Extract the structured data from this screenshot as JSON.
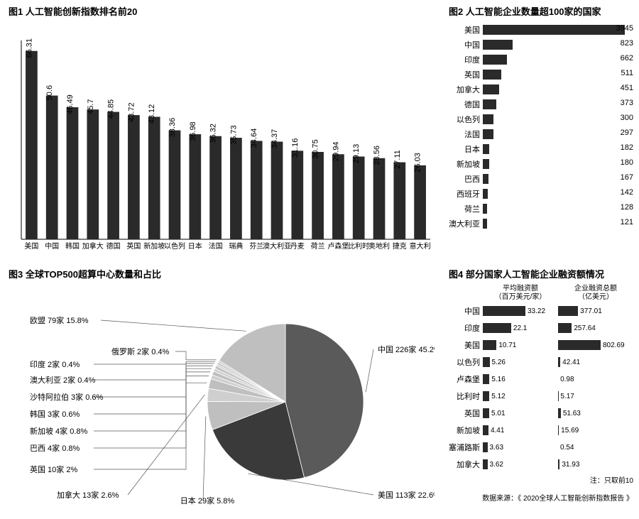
{
  "colors": {
    "bar": "#2a2a2a",
    "pie_china": "#5a5a5a",
    "pie_us": "#3a3a3a",
    "pie_light": "#bfbfbf",
    "bg": "#ffffff"
  },
  "chart1": {
    "type": "bar",
    "title": "图1  人工智能创新指数排名前20",
    "ylim": [
      0,
      70
    ],
    "categories": [
      "美国",
      "中国",
      "韩国",
      "加拿大",
      "德国",
      "英国",
      "新加坡",
      "以色列",
      "日本",
      "法国",
      "瑞典",
      "芬兰",
      "澳大利亚",
      "丹麦",
      "荷兰",
      "卢森堡",
      "比利时",
      "奥地利",
      "捷克",
      "意大利"
    ],
    "values": [
      66.31,
      50.6,
      46.49,
      45.7,
      44.85,
      43.72,
      43.12,
      38.36,
      36.98,
      36.32,
      35.73,
      34.64,
      34.37,
      31.16,
      30.75,
      29.94,
      29.13,
      28.56,
      27.11,
      26.03
    ],
    "value_fontsize": 11,
    "bar_color": "#2a2a2a"
  },
  "chart2": {
    "type": "hbar",
    "title": "图2 人工智能企业数量超100家的国家",
    "categories": [
      "美国",
      "中国",
      "印度",
      "英国",
      "加拿大",
      "德国",
      "以色列",
      "法国",
      "日本",
      "新加坡",
      "巴西",
      "西班牙",
      "荷兰",
      "澳大利亚"
    ],
    "values": [
      3945,
      823,
      662,
      511,
      451,
      373,
      300,
      297,
      182,
      180,
      167,
      142,
      128,
      121
    ],
    "xlim": 3945,
    "bar_color": "#2a2a2a"
  },
  "chart3": {
    "type": "pie",
    "title": "图3 全球TOP500超算中心数量和占比",
    "slices": [
      {
        "label": "中国",
        "count": 226,
        "pct": "45.2%",
        "color": "#5a5a5a"
      },
      {
        "label": "美国",
        "count": 113,
        "pct": "22.6%",
        "color": "#3a3a3a"
      },
      {
        "label": "日本",
        "count": 29,
        "pct": "5.8%",
        "color": "#bfbfbf"
      },
      {
        "label": "加拿大",
        "count": 13,
        "pct": "2.6%",
        "color": "#cfcfcf"
      },
      {
        "label": "英国",
        "count": 10,
        "pct": "2%",
        "color": "#bfbfbf"
      },
      {
        "label": "巴西",
        "count": 4,
        "pct": "0.8%",
        "color": "#cfcfcf"
      },
      {
        "label": "新加坡",
        "count": 4,
        "pct": "0.8%",
        "color": "#bfbfbf"
      },
      {
        "label": "韩国",
        "count": 3,
        "pct": "0.6%",
        "color": "#cfcfcf"
      },
      {
        "label": "沙特阿拉伯",
        "count": 3,
        "pct": "0.6%",
        "color": "#bfbfbf"
      },
      {
        "label": "澳大利亚",
        "count": 2,
        "pct": "0.4%",
        "color": "#cfcfcf"
      },
      {
        "label": "印度",
        "count": 2,
        "pct": "0.4%",
        "color": "#bfbfbf"
      },
      {
        "label": "俄罗斯",
        "count": 2,
        "pct": "0.4%",
        "color": "#cfcfcf"
      },
      {
        "label": "欧盟",
        "count": 79,
        "pct": "15.8%",
        "color": "#bfbfbf"
      }
    ],
    "count_suffix": "家"
  },
  "chart4": {
    "type": "double-hbar",
    "title": "图4  部分国家人工智能企业融资额情况",
    "header1": "平均融资额\n（百万美元/家）",
    "header2": "企业融资总额\n（亿美元）",
    "categories": [
      "中国",
      "印度",
      "美国",
      "以色列",
      "卢森堡",
      "比利时",
      "英国",
      "新加坡",
      "塞浦路斯",
      "加拿大"
    ],
    "avg": [
      33.22,
      22.1,
      10.71,
      5.26,
      5.16,
      5.12,
      5.01,
      4.41,
      3.63,
      3.62
    ],
    "total": [
      377.01,
      257.64,
      802.69,
      42.41,
      0.98,
      5.17,
      51.63,
      15.69,
      0.54,
      31.93
    ],
    "avg_max": 33.22,
    "total_max": 802.69,
    "note": "注：只取前10",
    "bar_color": "#2a2a2a"
  },
  "source": "数据来源：《 2020全球人工智能创新指数报告 》"
}
